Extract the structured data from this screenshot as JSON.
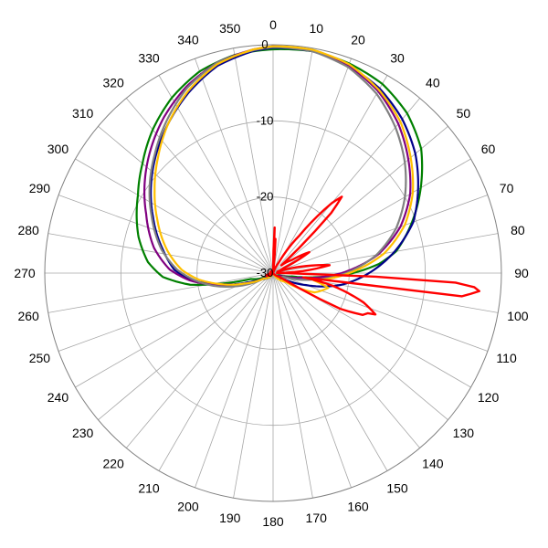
{
  "chart_data": {
    "type": "polar-line",
    "angle_unit": "degrees",
    "angle_zero": "top",
    "angle_direction": "clockwise",
    "angle_ticks": [
      0,
      10,
      20,
      30,
      40,
      50,
      60,
      70,
      80,
      90,
      100,
      110,
      120,
      130,
      140,
      150,
      160,
      170,
      180,
      190,
      200,
      210,
      220,
      230,
      240,
      250,
      260,
      270,
      280,
      290,
      300,
      310,
      320,
      330,
      340,
      350
    ],
    "radial_ticks": [
      0,
      -10,
      -20,
      -30
    ],
    "radial_range": [
      -30,
      0
    ],
    "grid": true,
    "legend": "none",
    "series": [
      {
        "color": "#008000",
        "points": [
          [
            0,
            -0.6
          ],
          [
            10,
            -0.4
          ],
          [
            20,
            -0.7
          ],
          [
            30,
            -1.3
          ],
          [
            40,
            -2.6
          ],
          [
            50,
            -4.6
          ],
          [
            60,
            -7.6
          ],
          [
            70,
            -10.6
          ],
          [
            80,
            -13.6
          ],
          [
            85,
            -16
          ],
          [
            90,
            -19.5
          ],
          [
            95,
            -24
          ],
          [
            100,
            -27.5
          ],
          [
            110,
            -29.2
          ],
          [
            150,
            -29.8
          ],
          [
            180,
            -30
          ],
          [
            210,
            -29.8
          ],
          [
            240,
            -29.2
          ],
          [
            255,
            -27
          ],
          [
            262,
            -19
          ],
          [
            268,
            -15.5
          ],
          [
            275,
            -13.5
          ],
          [
            285,
            -11.7
          ],
          [
            300,
            -9.5
          ],
          [
            310,
            -7.6
          ],
          [
            320,
            -5.4
          ],
          [
            330,
            -3.4
          ],
          [
            340,
            -1.8
          ],
          [
            350,
            -0.9
          ]
        ]
      },
      {
        "color": "#00008b",
        "points": [
          [
            0,
            -0.4
          ],
          [
            10,
            -0.4
          ],
          [
            20,
            -1.0
          ],
          [
            30,
            -2.0
          ],
          [
            40,
            -3.6
          ],
          [
            50,
            -5.6
          ],
          [
            60,
            -8.0
          ],
          [
            70,
            -10.4
          ],
          [
            80,
            -13.8
          ],
          [
            90,
            -17.4
          ],
          [
            100,
            -21.0
          ],
          [
            110,
            -25.4
          ],
          [
            120,
            -28.6
          ],
          [
            150,
            -29.8
          ],
          [
            180,
            -30
          ],
          [
            210,
            -29.8
          ],
          [
            240,
            -29.0
          ],
          [
            250,
            -26.4
          ],
          [
            258,
            -23.0
          ],
          [
            265,
            -19.2
          ],
          [
            272,
            -17.0
          ],
          [
            282,
            -15.2
          ],
          [
            295,
            -12.6
          ],
          [
            305,
            -10.4
          ],
          [
            315,
            -8.2
          ],
          [
            325,
            -6.0
          ],
          [
            335,
            -3.8
          ],
          [
            345,
            -1.8
          ],
          [
            355,
            -0.7
          ]
        ]
      },
      {
        "color": "#800080",
        "points": [
          [
            0,
            -0.2
          ],
          [
            10,
            -0.3
          ],
          [
            20,
            -1.0
          ],
          [
            30,
            -2.4
          ],
          [
            40,
            -4.4
          ],
          [
            50,
            -6.8
          ],
          [
            60,
            -9.2
          ],
          [
            70,
            -12.2
          ],
          [
            80,
            -16.0
          ],
          [
            90,
            -21.0
          ],
          [
            100,
            -26.5
          ],
          [
            110,
            -29.0
          ],
          [
            150,
            -29.8
          ],
          [
            180,
            -30
          ],
          [
            210,
            -29.8
          ],
          [
            240,
            -28.5
          ],
          [
            250,
            -25.5
          ],
          [
            260,
            -21.5
          ],
          [
            265,
            -19.0
          ],
          [
            272,
            -16.4
          ],
          [
            282,
            -14.0
          ],
          [
            295,
            -11.6
          ],
          [
            305,
            -9.4
          ],
          [
            315,
            -7.2
          ],
          [
            325,
            -5.0
          ],
          [
            335,
            -3.0
          ],
          [
            345,
            -1.4
          ],
          [
            355,
            -0.5
          ]
        ]
      },
      {
        "color": "#808080",
        "points": [
          [
            0,
            -0.3
          ],
          [
            10,
            -0.4
          ],
          [
            20,
            -1.2
          ],
          [
            30,
            -2.8
          ],
          [
            40,
            -5.0
          ],
          [
            50,
            -7.4
          ],
          [
            60,
            -10.0
          ],
          [
            70,
            -12.8
          ],
          [
            80,
            -16.2
          ],
          [
            90,
            -20.4
          ],
          [
            100,
            -25.0
          ],
          [
            110,
            -28.6
          ],
          [
            150,
            -29.8
          ],
          [
            180,
            -30
          ],
          [
            210,
            -29.8
          ],
          [
            240,
            -28.4
          ],
          [
            250,
            -25.0
          ],
          [
            258,
            -22.0
          ],
          [
            265,
            -19.6
          ],
          [
            272,
            -17.4
          ],
          [
            282,
            -15.0
          ],
          [
            295,
            -12.4
          ],
          [
            305,
            -10.2
          ],
          [
            315,
            -8.0
          ],
          [
            325,
            -5.6
          ],
          [
            335,
            -3.2
          ],
          [
            345,
            -1.4
          ],
          [
            355,
            -0.6
          ]
        ]
      },
      {
        "color": "#ffc000",
        "points": [
          [
            0,
            -0.2
          ],
          [
            10,
            -0.2
          ],
          [
            20,
            -0.8
          ],
          [
            30,
            -2.2
          ],
          [
            40,
            -4.0
          ],
          [
            50,
            -6.4
          ],
          [
            60,
            -8.8
          ],
          [
            70,
            -11.6
          ],
          [
            80,
            -15.2
          ],
          [
            90,
            -20.0
          ],
          [
            100,
            -24.6
          ],
          [
            105,
            -22.5
          ],
          [
            115,
            -24.0
          ],
          [
            125,
            -28.0
          ],
          [
            150,
            -29.8
          ],
          [
            180,
            -30
          ],
          [
            210,
            -29.8
          ],
          [
            240,
            -28.6
          ],
          [
            250,
            -26.0
          ],
          [
            258,
            -23.0
          ],
          [
            265,
            -20.2
          ],
          [
            272,
            -18.0
          ],
          [
            282,
            -15.8
          ],
          [
            295,
            -13.2
          ],
          [
            305,
            -11.0
          ],
          [
            315,
            -8.6
          ],
          [
            325,
            -6.0
          ],
          [
            335,
            -3.6
          ],
          [
            345,
            -1.6
          ],
          [
            355,
            -0.5
          ]
        ]
      },
      {
        "color": "#ff0000",
        "points": [
          [
            0,
            -30
          ],
          [
            2,
            -24
          ],
          [
            3,
            -29.5
          ],
          [
            4,
            -25.5
          ],
          [
            6,
            -29.5
          ],
          [
            10,
            -30
          ],
          [
            20,
            -29.8
          ],
          [
            28,
            -28.5
          ],
          [
            35,
            -24
          ],
          [
            40,
            -18
          ],
          [
            42,
            -16.5
          ],
          [
            44,
            -19
          ],
          [
            47,
            -28.5
          ],
          [
            55,
            -27
          ],
          [
            60,
            -24.5
          ],
          [
            65,
            -28.5
          ],
          [
            72,
            -29.4
          ],
          [
            78,
            -25.5
          ],
          [
            82,
            -22.5
          ],
          [
            86,
            -26
          ],
          [
            89,
            -29.5
          ],
          [
            91,
            -27
          ],
          [
            93,
            -6
          ],
          [
            94,
            -3.5
          ],
          [
            95,
            -2.8
          ],
          [
            97,
            -5
          ],
          [
            98,
            -26
          ],
          [
            102,
            -22
          ],
          [
            108,
            -17.5
          ],
          [
            112,
            -15.5
          ],
          [
            113,
            -16.5
          ],
          [
            115,
            -17
          ],
          [
            118,
            -20
          ],
          [
            121,
            -29
          ],
          [
            135,
            -29.8
          ],
          [
            180,
            -30
          ],
          [
            225,
            -29.8
          ],
          [
            250,
            -29
          ],
          [
            260,
            -29.5
          ],
          [
            275,
            -29.8
          ],
          [
            300,
            -29.6
          ],
          [
            330,
            -29.8
          ],
          [
            355,
            -30
          ]
        ]
      }
    ]
  }
}
